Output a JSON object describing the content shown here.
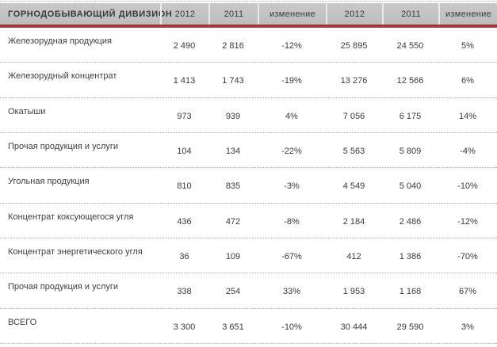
{
  "chart_data": {
    "type": "table",
    "title": "ГОРНОДОБЫВАЮЩИЙ ДИВИЗИОН",
    "column_headers": [
      "2012",
      "2011",
      "изменение",
      "2012",
      "2011",
      "изменение"
    ],
    "rows": [
      {
        "label": "Железорудная продукция",
        "values": [
          "2 490",
          "2 816",
          "-12%",
          "25 895",
          "24 550",
          "5%"
        ]
      },
      {
        "label": "Железорудный концентрат",
        "values": [
          "1 413",
          "1 743",
          "-19%",
          "13 276",
          "12 566",
          "6%"
        ]
      },
      {
        "label": "Окатыши",
        "values": [
          "973",
          "939",
          "4%",
          "7 056",
          "6 175",
          "14%"
        ]
      },
      {
        "label": "Прочая продукция и услуги",
        "values": [
          "104",
          "134",
          "-22%",
          "5 563",
          "5 809",
          "-4%"
        ]
      },
      {
        "label": "Угольная продукция",
        "values": [
          "810",
          "835",
          "-3%",
          "4 549",
          "5 040",
          "-10%"
        ]
      },
      {
        "label": "Концентрат коксующегося угля",
        "values": [
          "436",
          "472",
          "-8%",
          "2 184",
          "2 486",
          "-12%"
        ]
      },
      {
        "label": "Концентрат энергетического угля",
        "values": [
          "36",
          "109",
          "-67%",
          "412",
          "1 386",
          "-70%"
        ]
      },
      {
        "label": "Прочая продукция и услуги",
        "values": [
          "338",
          "254",
          "33%",
          "1 953",
          "1 168",
          "67%"
        ]
      },
      {
        "label": "ВСЕГО",
        "values": [
          "3 300",
          "3 651",
          "-10%",
          "30 444",
          "29 590",
          "3%"
        ]
      }
    ]
  },
  "colors": {
    "header_bg": "#c4c4c4",
    "header_separator": "#e9e9e9",
    "accent_red": "#a83a3a",
    "text": "#3d3d3d",
    "row_divider": "#a8a8a8",
    "background": "#ffffff"
  }
}
